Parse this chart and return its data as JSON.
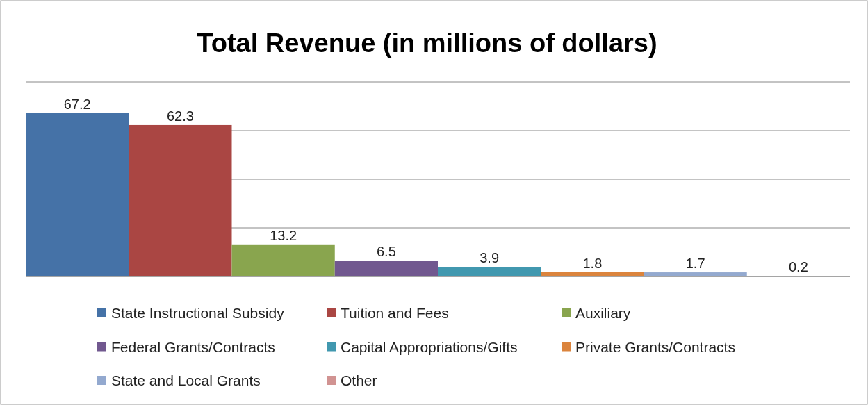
{
  "chart_data": {
    "type": "bar",
    "title": "Total Revenue (in millions of dollars)",
    "categories": [
      null
    ],
    "series": [
      {
        "name": "State Instructional Subsidy",
        "color": "#4572a7",
        "values": [
          67.2
        ]
      },
      {
        "name": "Tuition and Fees",
        "color": "#aa4643",
        "values": [
          62.3
        ]
      },
      {
        "name": "Auxiliary",
        "color": "#89a54e",
        "values": [
          13.2
        ]
      },
      {
        "name": "Federal Grants/Contracts",
        "color": "#71588f",
        "values": [
          6.5
        ]
      },
      {
        "name": "Capital Appropriations/Gifts",
        "color": "#4198af",
        "values": [
          3.9
        ]
      },
      {
        "name": "Private Grants/Contracts",
        "color": "#db843d",
        "values": [
          1.8
        ]
      },
      {
        "name": "State and Local Grants",
        "color": "#93a9cf",
        "values": [
          1.7
        ]
      },
      {
        "name": "Other",
        "color": "#d19392",
        "values": [
          0.2
        ]
      }
    ],
    "ylim": [
      0,
      80
    ],
    "yticks": [
      {
        "value": 0,
        "label": null
      },
      {
        "value": 20,
        "label": null
      },
      {
        "value": 40,
        "label": null
      },
      {
        "value": 60,
        "label": null
      },
      {
        "value": 80,
        "label": null
      }
    ],
    "grid": "y",
    "data_labels": true,
    "legend": "bottom"
  }
}
